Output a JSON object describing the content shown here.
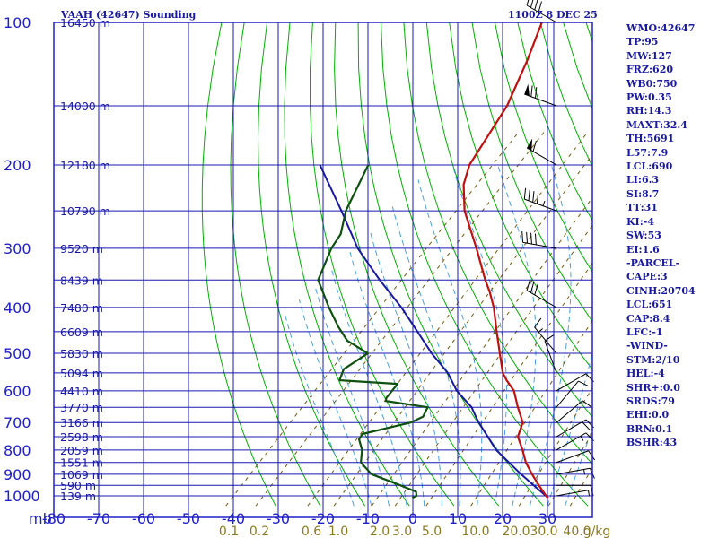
{
  "header": {
    "station": "VAAH (42647) Sounding",
    "time": "1100Z  8 DEC 25"
  },
  "stats": [
    "WMO:42647",
    "TP:95",
    "MW:127",
    "FRZ:620",
    "WB0:750",
    "PW:0.35",
    "RH:14.3",
    "MAXT:32.4",
    "TH:5691",
    "L57:7.9",
    "LCL:690",
    "LI:6.3",
    "SI:8.7",
    "TT:31",
    "KI:-4",
    "SW:53",
    "EI:1.6",
    "-PARCEL-",
    "CAPE:3",
    "CINH:20704",
    "LCL:651",
    "CAP:8.4",
    "LFC:-1",
    "-WIND-",
    "STM:2/10",
    "HEL:-4",
    "SHR+:0.0",
    "SRDS:79",
    "EHI:0.0",
    "BRN:0.1",
    "BSHR:43"
  ],
  "chart_data": {
    "type": "skew-t",
    "pressure_axis": {
      "unit_label": "mb",
      "range": [
        1050,
        100
      ],
      "scale": "log",
      "ticks": [
        100,
        200,
        300,
        400,
        500,
        600,
        700,
        800,
        900,
        1000
      ]
    },
    "temperature_axis": {
      "range": [
        -80,
        30
      ],
      "ticks": [
        -80,
        -70,
        -60,
        -50,
        -40,
        -30,
        -20,
        -10,
        0,
        10,
        20,
        30
      ]
    },
    "mixing_ratio_labels": [
      "0.1",
      "0.2",
      "0.6",
      "1.0",
      "2.0",
      "3.0",
      "5.0",
      "10.0",
      "20.0",
      "30.0",
      "40.0",
      "g/kg"
    ],
    "mixing_ratio_values": [
      0.1,
      0.2,
      0.6,
      1.0,
      2.0,
      3.0,
      5.0,
      10.0,
      20.0,
      30.0,
      40.0
    ],
    "height_labels": [
      {
        "p": 100,
        "label": "16450 m"
      },
      {
        "p": 150,
        "label": "14000 m"
      },
      {
        "p": 200,
        "label": "12180 m"
      },
      {
        "p": 250,
        "label": "10790 m"
      },
      {
        "p": 300,
        "label": "9520 m"
      },
      {
        "p": 350,
        "label": "8439 m"
      },
      {
        "p": 400,
        "label": "7480 m"
      },
      {
        "p": 450,
        "label": "6609 m"
      },
      {
        "p": 500,
        "label": "5830 m"
      },
      {
        "p": 550,
        "label": "5094 m"
      },
      {
        "p": 600,
        "label": "4410 m"
      },
      {
        "p": 650,
        "label": "3770 m"
      },
      {
        "p": 700,
        "label": "3166 m"
      },
      {
        "p": 750,
        "label": "2598 m"
      },
      {
        "p": 800,
        "label": "2059 m"
      },
      {
        "p": 850,
        "label": "1551 m"
      },
      {
        "p": 900,
        "label": "1069 m"
      },
      {
        "p": 950,
        "label": "590 m"
      },
      {
        "p": 1000,
        "label": "139 m"
      }
    ],
    "temperature_profile": [
      {
        "p": 1010,
        "t": 30.4
      },
      {
        "p": 1000,
        "t": 29.5
      },
      {
        "p": 950,
        "t": 25.5
      },
      {
        "p": 900,
        "t": 21.5
      },
      {
        "p": 850,
        "t": 17.5
      },
      {
        "p": 800,
        "t": 14.0
      },
      {
        "p": 750,
        "t": 10.0
      },
      {
        "p": 700,
        "t": 8.0
      },
      {
        "p": 650,
        "t": 3.5
      },
      {
        "p": 600,
        "t": -1.0
      },
      {
        "p": 570,
        "t": -5.0
      },
      {
        "p": 550,
        "t": -7.5
      },
      {
        "p": 500,
        "t": -12.5
      },
      {
        "p": 450,
        "t": -18.0
      },
      {
        "p": 400,
        "t": -24.0
      },
      {
        "p": 370,
        "t": -28.5
      },
      {
        "p": 350,
        "t": -32.0
      },
      {
        "p": 300,
        "t": -41.0
      },
      {
        "p": 250,
        "t": -52.0
      },
      {
        "p": 220,
        "t": -58.0
      },
      {
        "p": 200,
        "t": -61.0
      },
      {
        "p": 150,
        "t": -65.5
      },
      {
        "p": 120,
        "t": -71.0
      },
      {
        "p": 100,
        "t": -76.0
      }
    ],
    "dewpoint_profile": [
      {
        "p": 1010,
        "t": -0.5
      },
      {
        "p": 1000,
        "t": 0.0
      },
      {
        "p": 980,
        "t": -1.0
      },
      {
        "p": 950,
        "t": -6.0
      },
      {
        "p": 900,
        "t": -15.0
      },
      {
        "p": 850,
        "t": -20.0
      },
      {
        "p": 800,
        "t": -22.5
      },
      {
        "p": 760,
        "t": -25.5
      },
      {
        "p": 740,
        "t": -26.0
      },
      {
        "p": 700,
        "t": -17.5
      },
      {
        "p": 680,
        "t": -16.0
      },
      {
        "p": 650,
        "t": -17.0
      },
      {
        "p": 630,
        "t": -28.0
      },
      {
        "p": 620,
        "t": -28.5
      },
      {
        "p": 580,
        "t": -29.0
      },
      {
        "p": 570,
        "t": -43.0
      },
      {
        "p": 540,
        "t": -44.5
      },
      {
        "p": 500,
        "t": -42.5
      },
      {
        "p": 470,
        "t": -50.0
      },
      {
        "p": 440,
        "t": -55.0
      },
      {
        "p": 400,
        "t": -61.5
      },
      {
        "p": 350,
        "t": -70.0
      },
      {
        "p": 300,
        "t": -74.0
      },
      {
        "p": 280,
        "t": -75.0
      },
      {
        "p": 250,
        "t": -79.0
      },
      {
        "p": 200,
        "t": -84.0
      }
    ],
    "parcel_path": [
      {
        "p": 1010,
        "t": 30.4
      },
      {
        "p": 900,
        "t": 19.0
      },
      {
        "p": 800,
        "t": 8.0
      },
      {
        "p": 700,
        "t": -2.0
      },
      {
        "p": 680,
        "t": -4.0
      },
      {
        "p": 650,
        "t": -7.0
      },
      {
        "p": 600,
        "t": -14.0
      },
      {
        "p": 550,
        "t": -20.0
      },
      {
        "p": 500,
        "t": -28.0
      },
      {
        "p": 450,
        "t": -36.0
      },
      {
        "p": 400,
        "t": -45.0
      },
      {
        "p": 350,
        "t": -56.0
      },
      {
        "p": 300,
        "t": -68.0
      },
      {
        "p": 250,
        "t": -80.0
      },
      {
        "p": 200,
        "t": -95.0
      }
    ],
    "wind_barbs": [
      {
        "p": 1000,
        "dir": 80,
        "spd": 5
      },
      {
        "p": 950,
        "dir": 90,
        "spd": 10
      },
      {
        "p": 900,
        "dir": 80,
        "spd": 15
      },
      {
        "p": 850,
        "dir": 70,
        "spd": 10
      },
      {
        "p": 800,
        "dir": 60,
        "spd": 15
      },
      {
        "p": 750,
        "dir": 60,
        "spd": 20
      },
      {
        "p": 700,
        "dir": 50,
        "spd": 10
      },
      {
        "p": 650,
        "dir": 40,
        "spd": 10
      },
      {
        "p": 600,
        "dir": 60,
        "spd": 10
      },
      {
        "p": 550,
        "dir": 340,
        "spd": 10
      },
      {
        "p": 500,
        "dir": 320,
        "spd": 15
      },
      {
        "p": 400,
        "dir": 300,
        "spd": 30
      },
      {
        "p": 300,
        "dir": 280,
        "spd": 40
      },
      {
        "p": 250,
        "dir": 290,
        "spd": 45
      },
      {
        "p": 200,
        "dir": 300,
        "spd": 60
      },
      {
        "p": 150,
        "dir": 290,
        "spd": 70
      },
      {
        "p": 100,
        "dir": 300,
        "spd": 40
      }
    ],
    "colors": {
      "frame": "#2020c8",
      "isotherm": "#1818b0",
      "isobar": "#1818b0",
      "dry_adiabat": "#00b000",
      "moist_adiabat": "#4aa0e0",
      "mixing_ratio": "#705a10",
      "temperature": "#c01010",
      "dewpoint": "#105010",
      "parcel": "#1818a0",
      "wind": "#000000"
    }
  }
}
